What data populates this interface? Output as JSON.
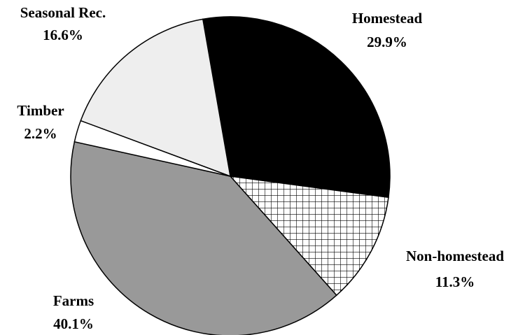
{
  "chart_data": {
    "type": "pie",
    "categories": [
      "Homestead",
      "Non-homestead",
      "Farms",
      "Timber",
      "Seasonal Rec."
    ],
    "values": [
      29.9,
      11.3,
      40.1,
      2.2,
      16.6
    ],
    "value_labels": [
      "29.9%",
      "11.3%",
      "40.1%",
      "2.2%",
      "16.6%"
    ],
    "colors": [
      "#000000",
      "grid",
      "#999999",
      "#ffffff",
      "#eeeeee"
    ]
  }
}
